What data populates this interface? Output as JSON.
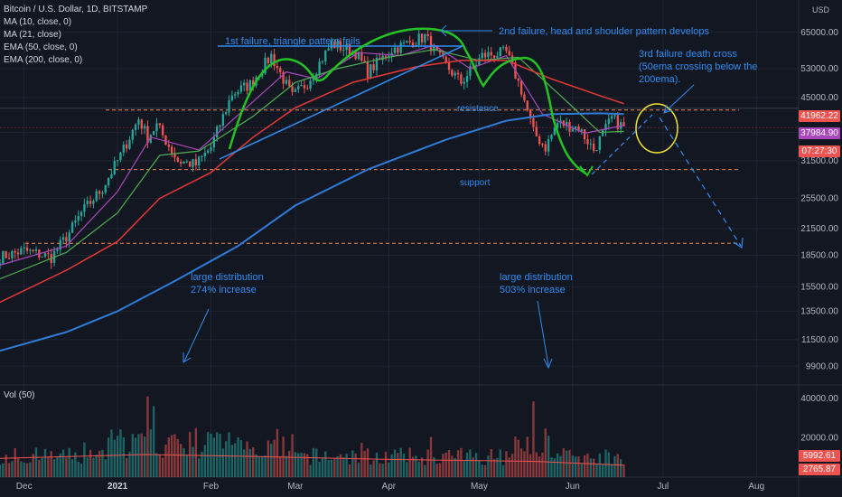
{
  "legend": {
    "symbol": "Bitcoin / U.S. Dollar, 1D, BITSTAMP",
    "ma10": "MA (10, close, 0)",
    "ma21": "MA (21, close)",
    "ema50": "EMA (50, close, 0)",
    "ema200": "EMA (200, close, 0)",
    "volume": "Vol (50)"
  },
  "currency": {
    "line1": "USD"
  },
  "annotations": {
    "triangle": "1st failure, triangle pattern fails",
    "headshoulder": "2nd failure, head and shoulder pattern develops",
    "deathcross_1": "3rd failure death cross",
    "deathcross_2": "(50ema crossing below the",
    "deathcross_3": "200ema).",
    "resistance": "resistance",
    "support": "support",
    "dist1_1": "large distribution",
    "dist1_2": "274% increase",
    "dist2_1": "large distribution",
    "dist2_2": "503% increase"
  },
  "price_tags": {
    "resistance_level": "41962.22",
    "current_price": "37984.90",
    "countdown": "07:27:30",
    "vol_ma": "5992.61",
    "vol_last": "2765.87"
  },
  "colors": {
    "background": "#131722",
    "up": "#26a69a",
    "down": "#ef5350",
    "ma10": "#ab47bc",
    "ma21": "#4caf50",
    "ema50": "#e53935",
    "ema200": "#2f7bd8",
    "annotation": "#2f8cf0",
    "pattern": "#22c322",
    "cross_circle": "#f2e330",
    "level_line": "#f0883e"
  },
  "chart_data": {
    "type": "candlestick",
    "title": "Bitcoin / U.S. Dollar, 1D, BITSTAMP",
    "y_scale": "log",
    "y_ticks": [
      65000,
      53000,
      45000,
      37000,
      31500,
      25500,
      21500,
      18500,
      15500,
      13500,
      11500,
      9900
    ],
    "x_ticks": [
      "Dec",
      "2021",
      "Feb",
      "Mar",
      "Apr",
      "May",
      "Jun",
      "Jul",
      "Aug"
    ],
    "volume_ticks": [
      "40000.00",
      "20000.00"
    ],
    "volume_ticks_values": [
      40000,
      20000
    ],
    "x_range": [
      "2020-11-23",
      "2021-08-15"
    ],
    "y_range": [
      9000,
      78000
    ],
    "levels": {
      "resistance": 41962.22,
      "support": 30000,
      "target": 19800
    },
    "price_path": [
      [
        "2020-11-23",
        18300
      ],
      [
        "2020-12-01",
        19000
      ],
      [
        "2020-12-10",
        18300
      ],
      [
        "2020-12-16",
        21000
      ],
      [
        "2020-12-20",
        23500
      ],
      [
        "2020-12-27",
        27000
      ],
      [
        "2021-01-02",
        32500
      ],
      [
        "2021-01-08",
        40000
      ],
      [
        "2021-01-11",
        36000
      ],
      [
        "2021-01-14",
        38500
      ],
      [
        "2021-01-21",
        31500
      ],
      [
        "2021-01-27",
        30800
      ],
      [
        "2021-02-01",
        34000
      ],
      [
        "2021-02-08",
        46000
      ],
      [
        "2021-02-14",
        48500
      ],
      [
        "2021-02-21",
        57000
      ],
      [
        "2021-02-28",
        45200
      ],
      [
        "2021-03-05",
        49000
      ],
      [
        "2021-03-13",
        61000
      ],
      [
        "2021-03-21",
        58000
      ],
      [
        "2021-03-25",
        52000
      ],
      [
        "2021-04-02",
        59000
      ],
      [
        "2021-04-13",
        63500
      ],
      [
        "2021-04-18",
        56000
      ],
      [
        "2021-04-25",
        49000
      ],
      [
        "2021-05-02",
        57000
      ],
      [
        "2021-05-10",
        58000
      ],
      [
        "2021-05-15",
        47000
      ],
      [
        "2021-05-19",
        37000
      ],
      [
        "2021-05-23",
        34000
      ],
      [
        "2021-05-27",
        39000
      ],
      [
        "2021-06-03",
        38000
      ],
      [
        "2021-06-08",
        33500
      ],
      [
        "2021-06-14",
        40000
      ],
      [
        "2021-06-18",
        38000
      ]
    ],
    "series": [
      {
        "name": "MA (10, close, 0)",
        "values": [
          [
            "2020-11-23",
            17500
          ],
          [
            "2020-12-15",
            19500
          ],
          [
            "2021-01-01",
            26500
          ],
          [
            "2021-01-12",
            36000
          ],
          [
            "2021-01-28",
            33500
          ],
          [
            "2021-02-15",
            44000
          ],
          [
            "2021-02-26",
            52000
          ],
          [
            "2021-03-08",
            50000
          ],
          [
            "2021-03-22",
            58000
          ],
          [
            "2021-04-05",
            57000
          ],
          [
            "2021-04-16",
            60500
          ],
          [
            "2021-04-28",
            53000
          ],
          [
            "2021-05-10",
            57000
          ],
          [
            "2021-05-22",
            41000
          ],
          [
            "2021-06-05",
            36800
          ],
          [
            "2021-06-18",
            38500
          ]
        ]
      },
      {
        "name": "MA (21, close)",
        "values": [
          [
            "2020-11-23",
            16200
          ],
          [
            "2020-12-15",
            18800
          ],
          [
            "2021-01-01",
            23500
          ],
          [
            "2021-01-15",
            32500
          ],
          [
            "2021-01-28",
            33300
          ],
          [
            "2021-02-15",
            40500
          ],
          [
            "2021-03-01",
            49000
          ],
          [
            "2021-03-15",
            53000
          ],
          [
            "2021-04-01",
            56500
          ],
          [
            "2021-04-16",
            59000
          ],
          [
            "2021-05-01",
            55500
          ],
          [
            "2021-05-14",
            56500
          ],
          [
            "2021-05-28",
            45500
          ],
          [
            "2021-06-10",
            37000
          ],
          [
            "2021-06-18",
            37200
          ]
        ]
      },
      {
        "name": "EMA (50, close, 0)",
        "values": [
          [
            "2020-11-23",
            14200
          ],
          [
            "2020-12-15",
            17000
          ],
          [
            "2021-01-01",
            20000
          ],
          [
            "2021-01-15",
            25500
          ],
          [
            "2021-02-01",
            29500
          ],
          [
            "2021-02-15",
            36000
          ],
          [
            "2021-03-01",
            42500
          ],
          [
            "2021-03-20",
            49000
          ],
          [
            "2021-04-10",
            53500
          ],
          [
            "2021-04-25",
            55500
          ],
          [
            "2021-05-10",
            55500
          ],
          [
            "2021-05-25",
            50000
          ],
          [
            "2021-06-10",
            45500
          ],
          [
            "2021-06-18",
            43500
          ]
        ]
      },
      {
        "name": "EMA (200, close, 0)",
        "values": [
          [
            "2020-11-23",
            10800
          ],
          [
            "2020-12-15",
            12000
          ],
          [
            "2021-01-01",
            13500
          ],
          [
            "2021-01-20",
            16000
          ],
          [
            "2021-02-10",
            19500
          ],
          [
            "2021-03-01",
            24500
          ],
          [
            "2021-03-25",
            30000
          ],
          [
            "2021-04-20",
            35500
          ],
          [
            "2021-05-10",
            39500
          ],
          [
            "2021-05-25",
            41000
          ],
          [
            "2021-06-10",
            41200
          ],
          [
            "2021-06-18",
            41000
          ]
        ]
      }
    ]
  }
}
